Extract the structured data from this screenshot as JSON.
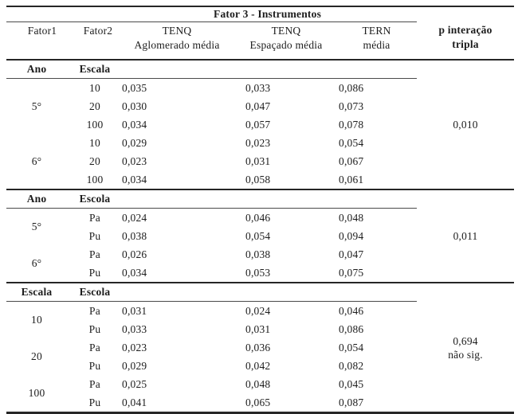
{
  "table": {
    "header": {
      "fator3_title": "Fator 3 - Instrumentos",
      "col_fator1": "Fator1",
      "col_fator2": "Fator2",
      "col_tenq_aglomerado_line1": "TENQ",
      "col_tenq_aglomerado_line2": "Aglomerado média",
      "col_tenq_espacado_line1": "TENQ",
      "col_tenq_espacado_line2": "Espaçado média",
      "col_tern_line1": "TERN",
      "col_tern_line2": "média",
      "col_p_line1": "p interação",
      "col_p_line2": "tripla"
    },
    "sections": [
      {
        "fator1_label": "Ano",
        "fator2_label": "Escala",
        "p_value": "0,010",
        "groups": [
          {
            "fator1": "5°",
            "rows": [
              {
                "fator2": "10",
                "values": [
                  "0,035",
                  "0,033",
                  "0,086"
                ]
              },
              {
                "fator2": "20",
                "values": [
                  "0,030",
                  "0,047",
                  "0,073"
                ]
              },
              {
                "fator2": "100",
                "values": [
                  "0,034",
                  "0,057",
                  "0,078"
                ]
              }
            ]
          },
          {
            "fator1": "6°",
            "rows": [
              {
                "fator2": "10",
                "values": [
                  "0,029",
                  "0,023",
                  "0,054"
                ]
              },
              {
                "fator2": "20",
                "values": [
                  "0,023",
                  "0,031",
                  "0,067"
                ]
              },
              {
                "fator2": "100",
                "values": [
                  "0,034",
                  "0,058",
                  "0,061"
                ]
              }
            ]
          }
        ]
      },
      {
        "fator1_label": "Ano",
        "fator2_label": "Escola",
        "p_value": "0,011",
        "groups": [
          {
            "fator1": "5°",
            "rows": [
              {
                "fator2": "Pa",
                "values": [
                  "0,024",
                  "0,046",
                  "0,048"
                ]
              },
              {
                "fator2": "Pu",
                "values": [
                  "0,038",
                  "0,054",
                  "0,094"
                ]
              }
            ]
          },
          {
            "fator1": "6°",
            "rows": [
              {
                "fator2": "Pa",
                "values": [
                  "0,026",
                  "0,038",
                  "0,047"
                ]
              },
              {
                "fator2": "Pu",
                "values": [
                  "0,034",
                  "0,053",
                  "0,075"
                ]
              }
            ]
          }
        ]
      },
      {
        "fator1_label": "Escala",
        "fator2_label": "Escola",
        "p_value": "0,694",
        "p_note": "não sig.",
        "groups": [
          {
            "fator1": "10",
            "rows": [
              {
                "fator2": "Pa",
                "values": [
                  "0,031",
                  "0,024",
                  "0,046"
                ]
              },
              {
                "fator2": "Pu",
                "values": [
                  "0,033",
                  "0,031",
                  "0,086"
                ]
              }
            ]
          },
          {
            "fator1": "20",
            "rows": [
              {
                "fator2": "Pa",
                "values": [
                  "0,023",
                  "0,036",
                  "0,054"
                ]
              },
              {
                "fator2": "Pu",
                "values": [
                  "0,029",
                  "0,042",
                  "0,082"
                ]
              }
            ]
          },
          {
            "fator1": "100",
            "rows": [
              {
                "fator2": "Pa",
                "values": [
                  "0,025",
                  "0,048",
                  "0,045"
                ]
              },
              {
                "fator2": "Pu",
                "values": [
                  "0,041",
                  "0,065",
                  "0,087"
                ]
              }
            ]
          }
        ]
      }
    ]
  }
}
